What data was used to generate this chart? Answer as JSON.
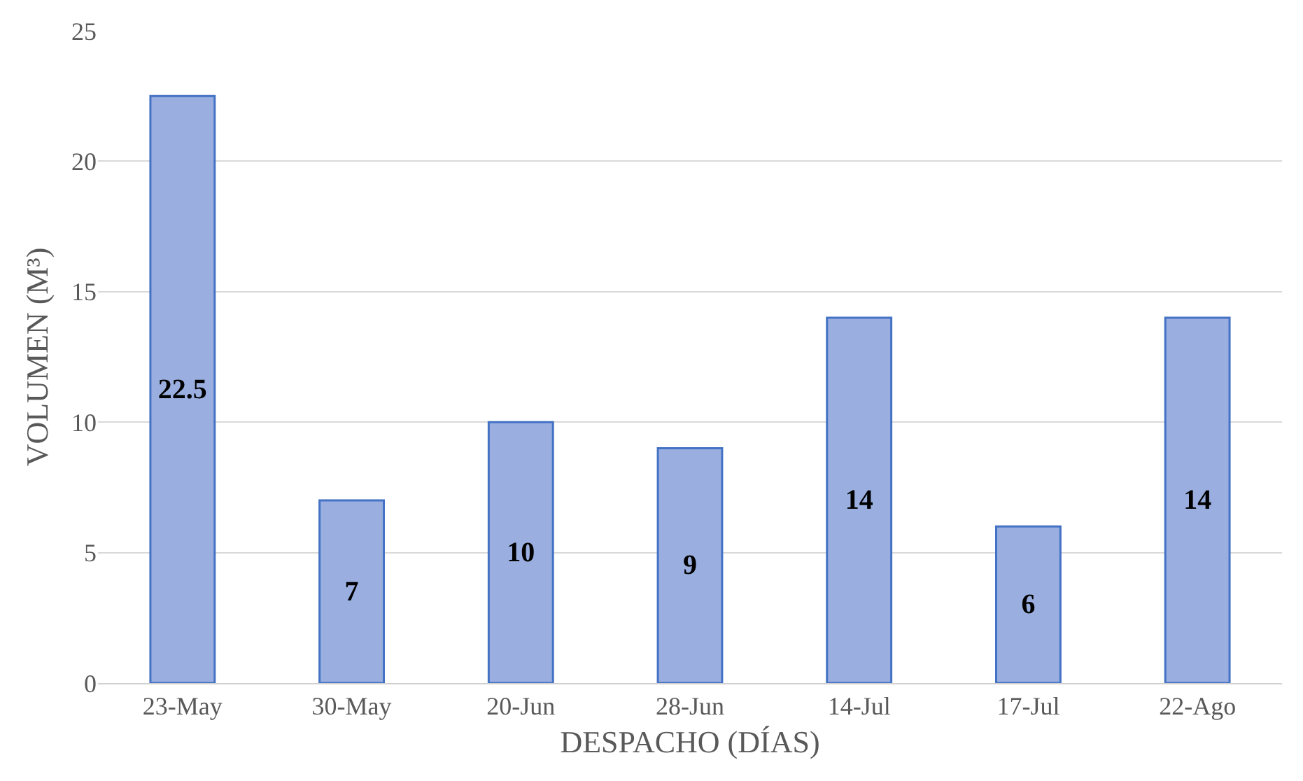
{
  "chart_data": {
    "type": "bar",
    "xlabel": "DESPACHO (DÍAS)",
    "ylabel": "VOLUMEN (M³)",
    "categories": [
      "23-May",
      "30-May",
      "20-Jun",
      "28-Jun",
      "14-Jul",
      "17-Jul",
      "22-Ago"
    ],
    "values": [
      22.5,
      7,
      10,
      9,
      14,
      6,
      14
    ],
    "color": "#9aafe0",
    "ylim": [
      0,
      25
    ],
    "yticks": [
      0,
      5,
      10,
      15,
      20,
      25
    ],
    "grid": "y",
    "data_labels": true
  }
}
